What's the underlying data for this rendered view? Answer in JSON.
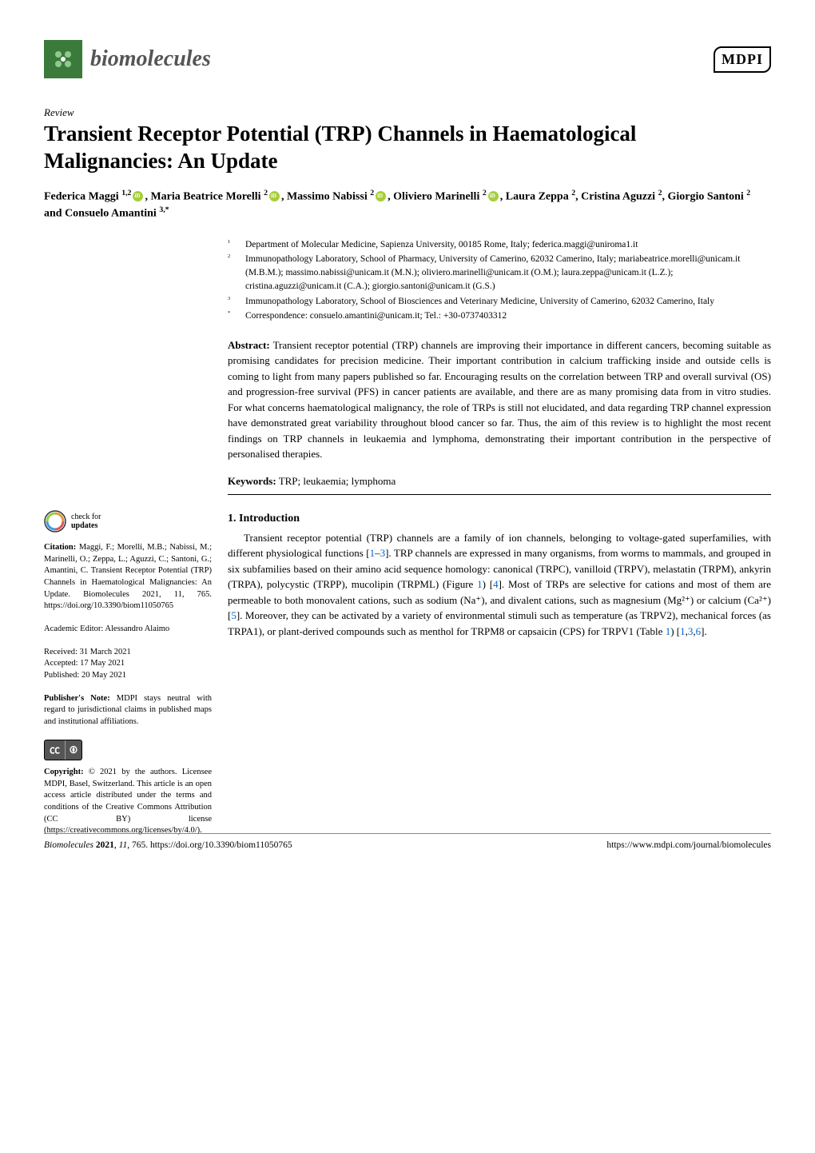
{
  "header": {
    "journal_name": "biomolecules",
    "publisher_logo": "MDPI"
  },
  "article": {
    "type": "Review",
    "title": "Transient Receptor Potential (TRP) Channels in Haematological Malignancies: An Update",
    "authors_html": "Federica Maggi <sup>1,2</sup>⦿, Maria Beatrice Morelli <sup>2</sup>⦿, Massimo Nabissi <sup>2</sup>⦿, Oliviero Marinelli <sup>2</sup>⦿, Laura Zeppa <sup>2</sup>, Cristina Aguzzi <sup>2</sup>, Giorgio Santoni <sup>2</sup> and Consuelo Amantini <sup>3,</sup>*",
    "authors": [
      {
        "name": "Federica Maggi",
        "affil": "1,2",
        "orcid": true
      },
      {
        "name": "Maria Beatrice Morelli",
        "affil": "2",
        "orcid": true
      },
      {
        "name": "Massimo Nabissi",
        "affil": "2",
        "orcid": true
      },
      {
        "name": "Oliviero Marinelli",
        "affil": "2",
        "orcid": true
      },
      {
        "name": "Laura Zeppa",
        "affil": "2",
        "orcid": false
      },
      {
        "name": "Cristina Aguzzi",
        "affil": "2",
        "orcid": false
      },
      {
        "name": "Giorgio Santoni",
        "affil": "2",
        "orcid": false
      },
      {
        "name": "Consuelo Amantini",
        "affil": "3,*",
        "orcid": false
      }
    ],
    "affiliations": [
      {
        "num": "1",
        "text": "Department of Molecular Medicine, Sapienza University, 00185 Rome, Italy; federica.maggi@uniroma1.it"
      },
      {
        "num": "2",
        "text": "Immunopathology Laboratory, School of Pharmacy, University of Camerino, 62032 Camerino, Italy; mariabeatrice.morelli@unicam.it (M.B.M.); massimo.nabissi@unicam.it (M.N.); oliviero.marinelli@unicam.it (O.M.); laura.zeppa@unicam.it (L.Z.); cristina.aguzzi@unicam.it (C.A.); giorgio.santoni@unicam.it (G.S.)"
      },
      {
        "num": "3",
        "text": "Immunopathology Laboratory, School of Biosciences and Veterinary Medicine, University of Camerino, 62032 Camerino, Italy"
      },
      {
        "num": "*",
        "text": "Correspondence: consuelo.amantini@unicam.it; Tel.: +30-0737403312"
      }
    ],
    "abstract_label": "Abstract:",
    "abstract": "Transient receptor potential (TRP) channels are improving their importance in different cancers, becoming suitable as promising candidates for precision medicine. Their important contribution in calcium trafficking inside and outside cells is coming to light from many papers published so far. Encouraging results on the correlation between TRP and overall survival (OS) and progression-free survival (PFS) in cancer patients are available, and there are as many promising data from in vitro studies. For what concerns haematological malignancy, the role of TRPs is still not elucidated, and data regarding TRP channel expression have demonstrated great variability throughout blood cancer so far. Thus, the aim of this review is to highlight the most recent findings on TRP channels in leukaemia and lymphoma, demonstrating their important contribution in the perspective of personalised therapies.",
    "keywords_label": "Keywords:",
    "keywords": "TRP; leukaemia; lymphoma"
  },
  "sections": {
    "intro_title": "1. Introduction",
    "intro_p1a": "Transient receptor potential (TRP) channels are a family of ion channels, belonging to voltage-gated superfamilies, with different physiological functions [",
    "intro_ref1": "1",
    "intro_dash1": "–",
    "intro_ref3": "3",
    "intro_p1b": "]. TRP channels are expressed in many organisms, from worms to mammals, and grouped in six subfamilies based on their amino acid sequence homology: canonical (TRPC), vanilloid (TRPV), melastatin (TRPM), ankyrin (TRPA), polycystic (TRPP), mucolipin (TRPML) (Figure ",
    "intro_fig1": "1",
    "intro_p1c": ") [",
    "intro_ref4": "4",
    "intro_p1d": "]. Most of TRPs are selective for cations and most of them are permeable to both monovalent cations, such as sodium (Na⁺), and divalent cations, such as magnesium (Mg²⁺) or calcium (Ca²⁺) [",
    "intro_ref5": "5",
    "intro_p1e": "]. Moreover, they can be activated by a variety of environmental stimuli such as temperature (as TRPV2), mechanical forces (as TRPA1), or plant-derived compounds such as menthol for TRPM8 or capsaicin (CPS) for TRPV1 (Table ",
    "intro_tab1": "1",
    "intro_p1f": ") [",
    "intro_ref1b": "1",
    "intro_comma1": ",",
    "intro_ref3b": "3",
    "intro_comma2": ",",
    "intro_ref6": "6",
    "intro_p1g": "]."
  },
  "sidebar": {
    "check_updates_line1": "check for",
    "check_updates_line2": "updates",
    "citation_label": "Citation:",
    "citation": "Maggi, F.; Morelli, M.B.; Nabissi, M.; Marinelli, O.; Zeppa, L.; Aguzzi, C.; Santoni, G.; Amantini, C. Transient Receptor Potential (TRP) Channels in Haematological Malignancies: An Update. Biomolecules 2021, 11, 765. https://doi.org/10.3390/biom11050765",
    "editor_label": "Academic Editor:",
    "editor": "Alessandro Alaimo",
    "received": "Received: 31 March 2021",
    "accepted": "Accepted: 17 May 2021",
    "published": "Published: 20 May 2021",
    "pub_note_label": "Publisher's Note:",
    "pub_note": "MDPI stays neutral with regard to jurisdictional claims in published maps and institutional affiliations.",
    "copyright_label": "Copyright:",
    "copyright": "© 2021 by the authors. Licensee MDPI, Basel, Switzerland. This article is an open access article distributed under the terms and conditions of the Creative Commons Attribution (CC BY) license (https://creativecommons.org/licenses/by/4.0/)."
  },
  "footer": {
    "left": "Biomolecules 2021, 11, 765. https://doi.org/10.3390/biom11050765",
    "right": "https://www.mdpi.com/journal/biomolecules"
  },
  "colors": {
    "logo_bg": "#3a7a3a",
    "orcid": "#a6ce39",
    "link": "#0066cc",
    "text": "#000000",
    "journal_name": "#555555"
  }
}
